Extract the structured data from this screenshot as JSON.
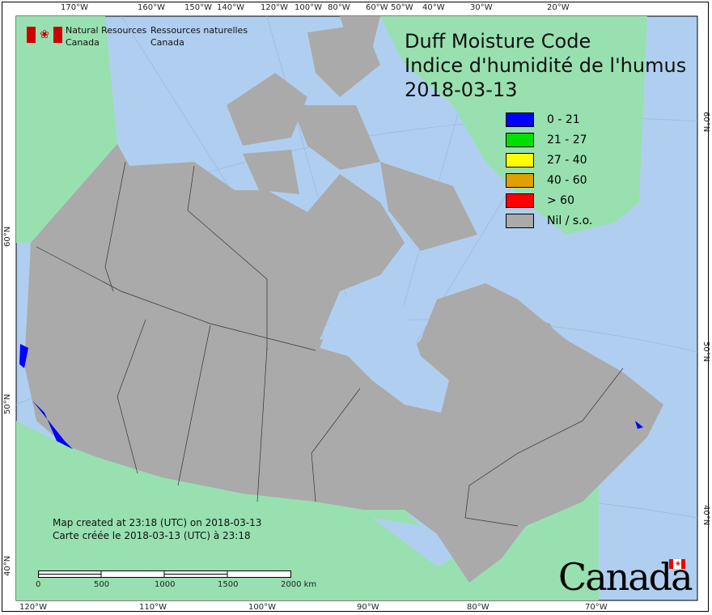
{
  "title": {
    "line1": "Duff Moisture Code",
    "line2": "Indice d'humidité de l'humus",
    "date": "2018-03-13"
  },
  "agency": {
    "en_line1": "Natural Resources",
    "en_line2": "Canada",
    "fr_line1": "Ressources naturelles",
    "fr_line2": "Canada"
  },
  "legend": [
    {
      "label": "0 - 21",
      "color": "#0000ff"
    },
    {
      "label": "21 - 27",
      "color": "#00e000"
    },
    {
      "label": "27 - 40",
      "color": "#ffff00"
    },
    {
      "label": "40 - 60",
      "color": "#e0a000"
    },
    {
      "label": "> 60",
      "color": "#ff0000"
    },
    {
      "label": "Nil / s.o.",
      "color": "#aaaaaa"
    }
  ],
  "credit": {
    "en": "Map created at 23:18 (UTC) on 2018-03-13",
    "fr": "Carte créée le 2018-03-13 (UTC) à 23:18"
  },
  "scale": {
    "labels": [
      "0",
      "500",
      "1000",
      "1500",
      "2000 km"
    ]
  },
  "top_ticks": [
    "170°W",
    "160°W",
    "150°W",
    "140°W",
    "120°W",
    "100°W",
    "80°W",
    "60°W",
    "50°W",
    "40°W",
    "30°W",
    "20°W"
  ],
  "bottom_ticks": [
    "120°W",
    "110°W",
    "100°W",
    "90°W",
    "80°W",
    "70°W"
  ],
  "left_ticks": [
    "60°N",
    "50°N",
    "40°N"
  ],
  "right_ticks": [
    "60°N",
    "50°N",
    "40°N"
  ],
  "wordmark": "Canada",
  "colors": {
    "water": "#b0cff0",
    "foreign_land": "#98e0b0",
    "no_data": "#aaaaaa"
  }
}
